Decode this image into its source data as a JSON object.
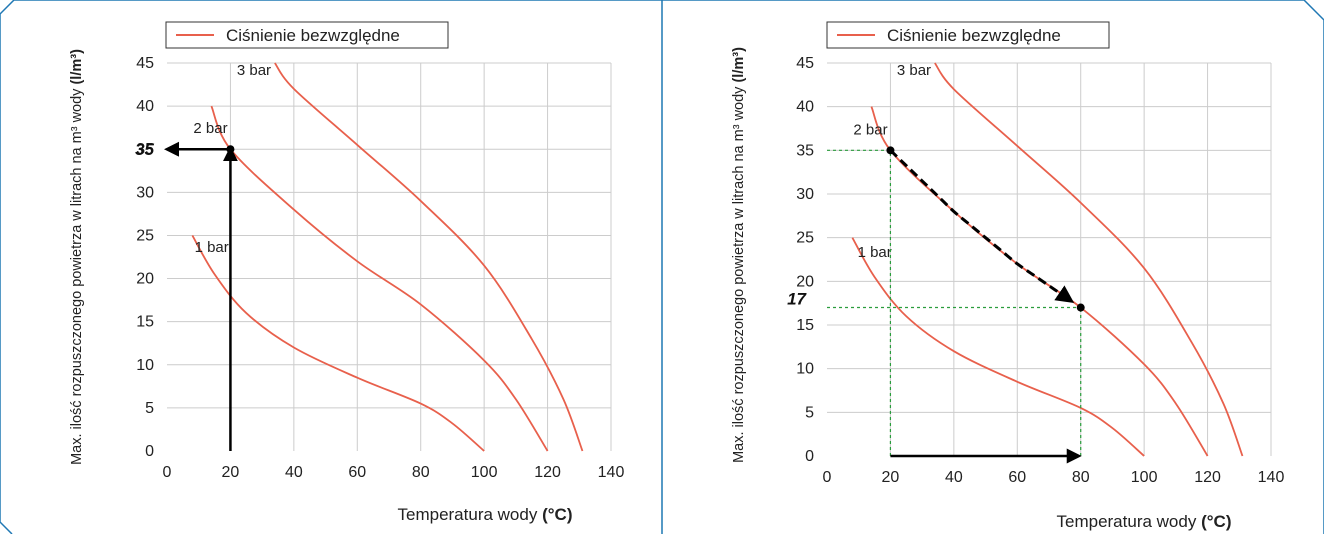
{
  "colors": {
    "frame": "#1f78b4",
    "curve": "#e8604c",
    "grid": "#cccccc",
    "axis": "#000000",
    "guide": "#2a9d3c"
  },
  "chart_data": [
    {
      "type": "line",
      "xlabel_main": "Temperatura wody ",
      "xlabel_unit": "(°C)",
      "ylabel_main": "Max. ilość rozpuszczonego powietrza w litrach na m³ wody ",
      "ylabel_unit": "(l/m³)",
      "legend": "Ciśnienie bezwzględne",
      "legend_position": "top-left",
      "grid": true,
      "xlim": [
        0,
        140
      ],
      "ylim": [
        0,
        45
      ],
      "xticks": [
        "0",
        "20",
        "40",
        "60",
        "80",
        "100",
        "120",
        "140"
      ],
      "yticks": [
        "0",
        "5",
        "10",
        "15",
        "20",
        "25",
        "30",
        "35",
        "40",
        "45"
      ],
      "series": [
        {
          "name": "1 bar",
          "x": [
            8,
            15,
            25,
            40,
            60,
            80,
            90,
            100
          ],
          "y": [
            25,
            20.5,
            16,
            12,
            8.5,
            5.5,
            3.2,
            0
          ]
        },
        {
          "name": "2 bar",
          "x": [
            14,
            20,
            40,
            60,
            80,
            100,
            110,
            120
          ],
          "y": [
            40,
            35,
            28,
            22,
            17,
            10.5,
            6,
            0
          ]
        },
        {
          "name": "3 bar",
          "x": [
            34,
            40,
            60,
            80,
            100,
            115,
            125,
            131
          ],
          "y": [
            45,
            42,
            35.5,
            29,
            21.5,
            13,
            6,
            0
          ]
        }
      ],
      "annotations": {
        "highlight_y_label": "35",
        "arrows": [
          {
            "from": [
              20,
              0
            ],
            "to": [
              20,
              35
            ]
          },
          {
            "from": [
              20,
              35
            ],
            "to": [
              0,
              35
            ]
          }
        ]
      }
    },
    {
      "type": "line",
      "xlabel_main": "Temperatura wody ",
      "xlabel_unit": "(°C)",
      "ylabel_main": "Max. ilość rozpuszczonego powietrza w litrach na m³ wody ",
      "ylabel_unit": "(l/m³)",
      "legend": "Ciśnienie bezwzględne",
      "legend_position": "top-left",
      "grid": true,
      "xlim": [
        0,
        140
      ],
      "ylim": [
        0,
        45
      ],
      "xticks": [
        "0",
        "20",
        "40",
        "60",
        "80",
        "100",
        "120",
        "140"
      ],
      "yticks": [
        "0",
        "5",
        "10",
        "15",
        "20",
        "25",
        "30",
        "35",
        "40",
        "45"
      ],
      "series": [
        {
          "name": "1 bar",
          "x": [
            8,
            15,
            25,
            40,
            60,
            80,
            90,
            100
          ],
          "y": [
            25,
            20.5,
            16,
            12,
            8.5,
            5.5,
            3.2,
            0
          ]
        },
        {
          "name": "2 bar",
          "x": [
            14,
            20,
            40,
            60,
            80,
            100,
            110,
            120
          ],
          "y": [
            40,
            35,
            28,
            22,
            17,
            10.5,
            6,
            0
          ]
        },
        {
          "name": "3 bar",
          "x": [
            34,
            40,
            60,
            80,
            100,
            115,
            125,
            131
          ],
          "y": [
            45,
            42,
            35.5,
            29,
            21.5,
            13,
            6,
            0
          ]
        }
      ],
      "annotations": {
        "highlight_y_label": "17",
        "points": [
          [
            20,
            35
          ],
          [
            80,
            17
          ]
        ],
        "dashed_arrow": {
          "from": [
            20,
            35
          ],
          "to": [
            80,
            17
          ]
        },
        "arrow": {
          "from": [
            20,
            0
          ],
          "to": [
            80,
            0
          ]
        },
        "guides": [
          [
            20,
            35
          ],
          [
            80,
            17
          ]
        ]
      }
    }
  ]
}
